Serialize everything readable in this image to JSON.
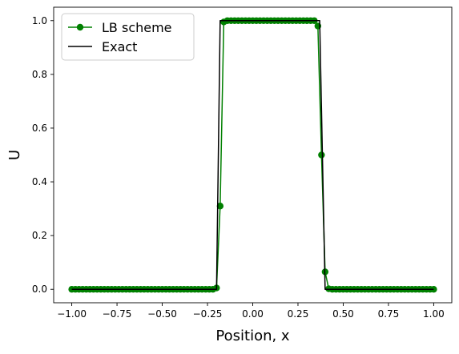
{
  "chart_data": {
    "type": "line",
    "title": "",
    "xlabel": "Position, x",
    "ylabel": "U",
    "xlim": [
      -1.1,
      1.1
    ],
    "ylim": [
      -0.05,
      1.05
    ],
    "xticks": [
      -1.0,
      -0.75,
      -0.5,
      -0.25,
      0.0,
      0.25,
      0.5,
      0.75,
      1.0
    ],
    "yticks": [
      0.0,
      0.2,
      0.4,
      0.6,
      0.8,
      1.0
    ],
    "xtick_labels": [
      "−1.00",
      "−0.75",
      "−0.50",
      "−0.25",
      "0.00",
      "0.25",
      "0.50",
      "0.75",
      "1.00"
    ],
    "ytick_labels": [
      "0.0",
      "0.2",
      "0.4",
      "0.6",
      "0.8",
      "1.0"
    ],
    "grid": false,
    "legend": "top-left",
    "series": [
      {
        "name": "LB scheme",
        "color": "#008000",
        "marker": "circle",
        "x": [
          -1.0,
          -0.98,
          -0.96,
          -0.94,
          -0.92,
          -0.9,
          -0.88,
          -0.86,
          -0.84,
          -0.82,
          -0.8,
          -0.78,
          -0.76,
          -0.74,
          -0.72,
          -0.7,
          -0.68,
          -0.66,
          -0.64,
          -0.62,
          -0.6,
          -0.58,
          -0.56,
          -0.54,
          -0.52,
          -0.5,
          -0.48,
          -0.46,
          -0.44,
          -0.42,
          -0.4,
          -0.38,
          -0.36,
          -0.34,
          -0.32,
          -0.3,
          -0.28,
          -0.26,
          -0.24,
          -0.22,
          -0.2,
          -0.18,
          -0.16,
          -0.14,
          -0.12,
          -0.1,
          -0.08,
          -0.06,
          -0.04,
          -0.02,
          0.0,
          0.02,
          0.04,
          0.06,
          0.08,
          0.1,
          0.12,
          0.14,
          0.16,
          0.18,
          0.2,
          0.22,
          0.24,
          0.26,
          0.28,
          0.3,
          0.32,
          0.34,
          0.36,
          0.38,
          0.4,
          0.42,
          0.44,
          0.46,
          0.48,
          0.5,
          0.52,
          0.54,
          0.56,
          0.58,
          0.6,
          0.62,
          0.64,
          0.66,
          0.68,
          0.7,
          0.72,
          0.74,
          0.76,
          0.78,
          0.8,
          0.82,
          0.84,
          0.86,
          0.88,
          0.9,
          0.92,
          0.94,
          0.96,
          0.98,
          1.0
        ],
        "y": [
          0,
          0,
          0,
          0,
          0,
          0,
          0,
          0,
          0,
          0,
          0,
          0,
          0,
          0,
          0,
          0,
          0,
          0,
          0,
          0,
          0,
          0,
          0,
          0,
          0,
          0,
          0,
          0,
          0,
          0,
          0,
          0,
          0,
          0,
          0,
          0,
          0,
          0,
          0,
          0,
          0.005,
          0.31,
          0.995,
          1,
          1,
          1,
          1,
          1,
          1,
          1,
          1,
          1,
          1,
          1,
          1,
          1,
          1,
          1,
          1,
          1,
          1,
          1,
          1,
          1,
          1,
          1,
          1,
          1,
          0.98,
          0.5,
          0.065,
          0.002,
          0,
          0,
          0,
          0,
          0,
          0,
          0,
          0,
          0,
          0,
          0,
          0,
          0,
          0,
          0,
          0,
          0,
          0,
          0,
          0,
          0,
          0,
          0,
          0,
          0,
          0,
          0,
          0,
          0
        ]
      },
      {
        "name": "Exact",
        "color": "#000000",
        "marker": "none",
        "x": [
          -1.0,
          -0.2,
          -0.2,
          -0.2,
          -0.18,
          -0.18,
          0.37,
          0.37,
          0.4,
          0.4,
          1.0
        ],
        "y": [
          0,
          0,
          0,
          0,
          1,
          1,
          1,
          1,
          0,
          0,
          0
        ]
      }
    ]
  }
}
